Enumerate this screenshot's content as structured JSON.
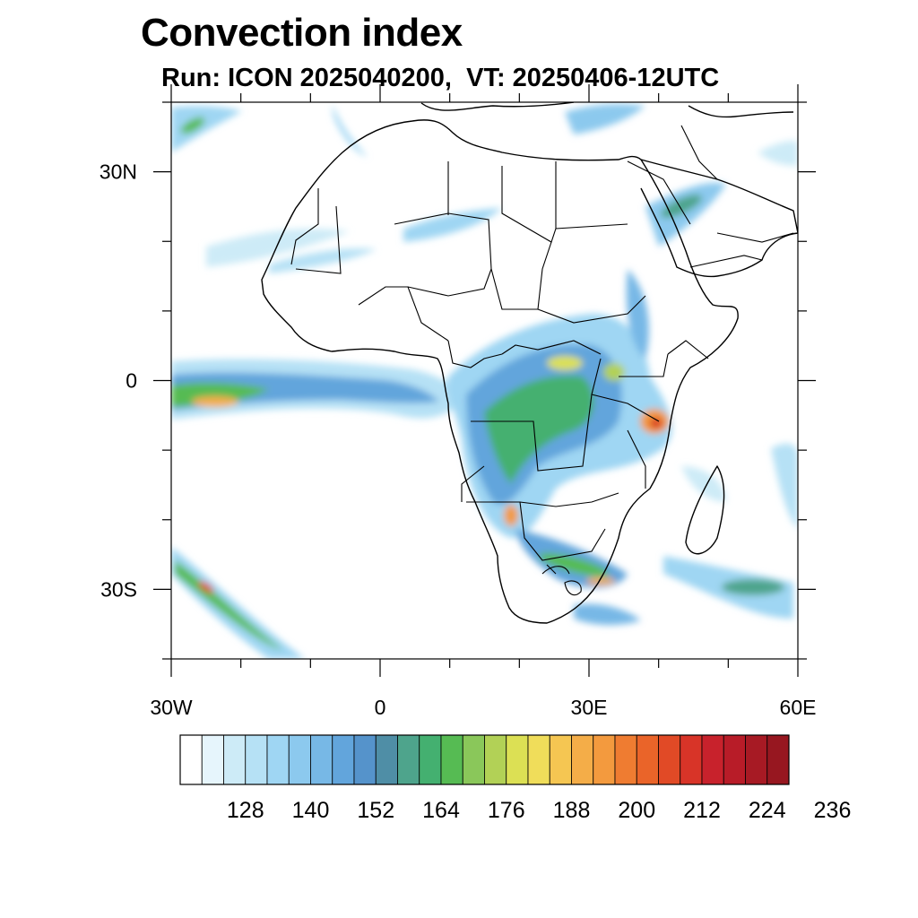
{
  "title": "Convection index",
  "subtitle": "Run: ICON 2025040200,  VT: 20250406-12UTC",
  "map": {
    "region": "Africa",
    "lon_range": [
      -30,
      60
    ],
    "lat_range": [
      -40,
      40
    ],
    "x_ticks": [
      {
        "value": -30,
        "label": "30W"
      },
      {
        "value": 0,
        "label": "0"
      },
      {
        "value": 30,
        "label": "30E"
      },
      {
        "value": 60,
        "label": "60E"
      }
    ],
    "y_ticks": [
      {
        "value": 30,
        "label": "30N"
      },
      {
        "value": 0,
        "label": "0"
      },
      {
        "value": -30,
        "label": "30S"
      }
    ]
  },
  "colorbar": {
    "colors": [
      "#ffffff",
      "#e6f5fc",
      "#cdebf7",
      "#b6e1f5",
      "#9fd6f3",
      "#8cc9ee",
      "#77b8e6",
      "#62a5dc",
      "#5593cb",
      "#4f8ea6",
      "#4ea48c",
      "#44b070",
      "#56bb53",
      "#8ac75a",
      "#b2d156",
      "#dce054",
      "#f0dd5a",
      "#f5c652",
      "#f4ad48",
      "#f39a3e",
      "#ef7c31",
      "#ea6429",
      "#e14a26",
      "#d83428",
      "#c8222c",
      "#b81c28",
      "#a71a24",
      "#971720"
    ],
    "labels": [
      "128",
      "140",
      "152",
      "164",
      "176",
      "188",
      "200",
      "212",
      "224",
      "236"
    ]
  }
}
